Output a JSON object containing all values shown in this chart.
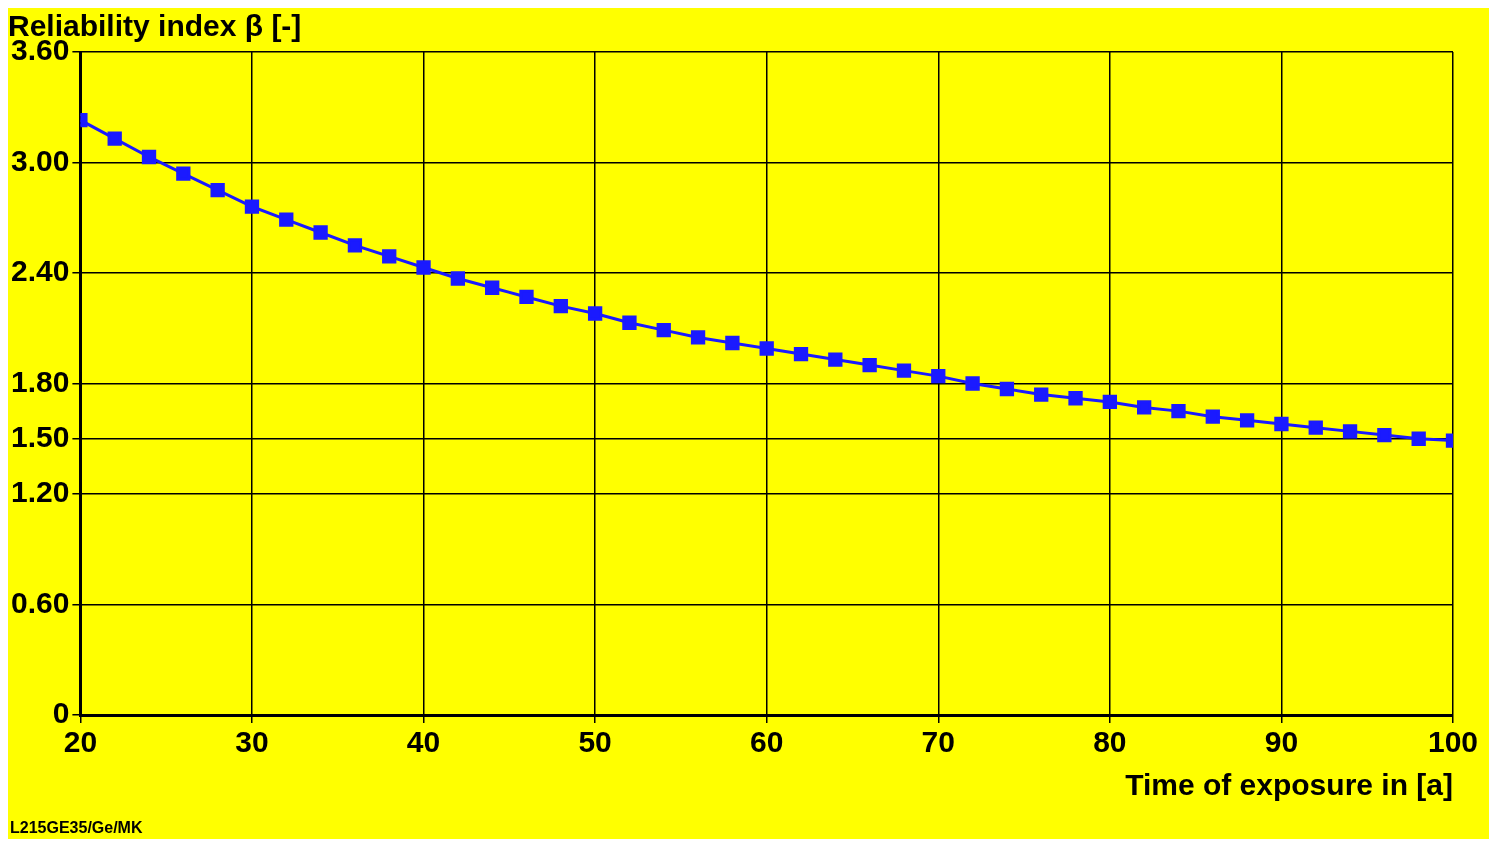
{
  "chart_data": {
    "type": "line",
    "title": "Reliability index β [-]",
    "xlabel": "Time of exposure in [a]",
    "annotations": [
      "L215GE35/Ge/MK"
    ],
    "x": [
      20,
      22,
      24,
      26,
      28,
      30,
      32,
      34,
      36,
      38,
      40,
      42,
      44,
      46,
      48,
      50,
      52,
      54,
      56,
      58,
      60,
      62,
      64,
      66,
      68,
      70,
      72,
      74,
      76,
      78,
      80,
      82,
      84,
      86,
      88,
      90,
      92,
      94,
      96,
      98,
      100
    ],
    "series": [
      {
        "color": "#1a1aff",
        "values": [
          3.23,
          3.13,
          3.03,
          2.94,
          2.85,
          2.76,
          2.69,
          2.62,
          2.55,
          2.49,
          2.43,
          2.37,
          2.32,
          2.27,
          2.22,
          2.18,
          2.13,
          2.09,
          2.05,
          2.02,
          1.99,
          1.96,
          1.93,
          1.9,
          1.87,
          1.84,
          1.8,
          1.77,
          1.74,
          1.72,
          1.7,
          1.67,
          1.65,
          1.62,
          1.6,
          1.58,
          1.56,
          1.54,
          1.52,
          1.5,
          1.49
        ]
      }
    ],
    "xlim": [
      20,
      100
    ],
    "xticks": [
      20,
      30,
      40,
      50,
      60,
      70,
      80,
      90,
      100
    ],
    "ylim": [
      0,
      3.6
    ],
    "yticks": [
      {
        "value": 0,
        "label": "0"
      },
      {
        "value": 0.6,
        "label": "0.60"
      },
      {
        "value": 1.2,
        "label": "1.20"
      },
      {
        "value": 1.5,
        "label": "1.50"
      },
      {
        "value": 1.8,
        "label": "1.80"
      },
      {
        "value": 2.4,
        "label": "2.40"
      },
      {
        "value": 3,
        "label": "3.00"
      },
      {
        "value": 3.6,
        "label": "3.60"
      }
    ],
    "grid": true,
    "marker": "square",
    "line_style": "solid",
    "legend": false
  }
}
